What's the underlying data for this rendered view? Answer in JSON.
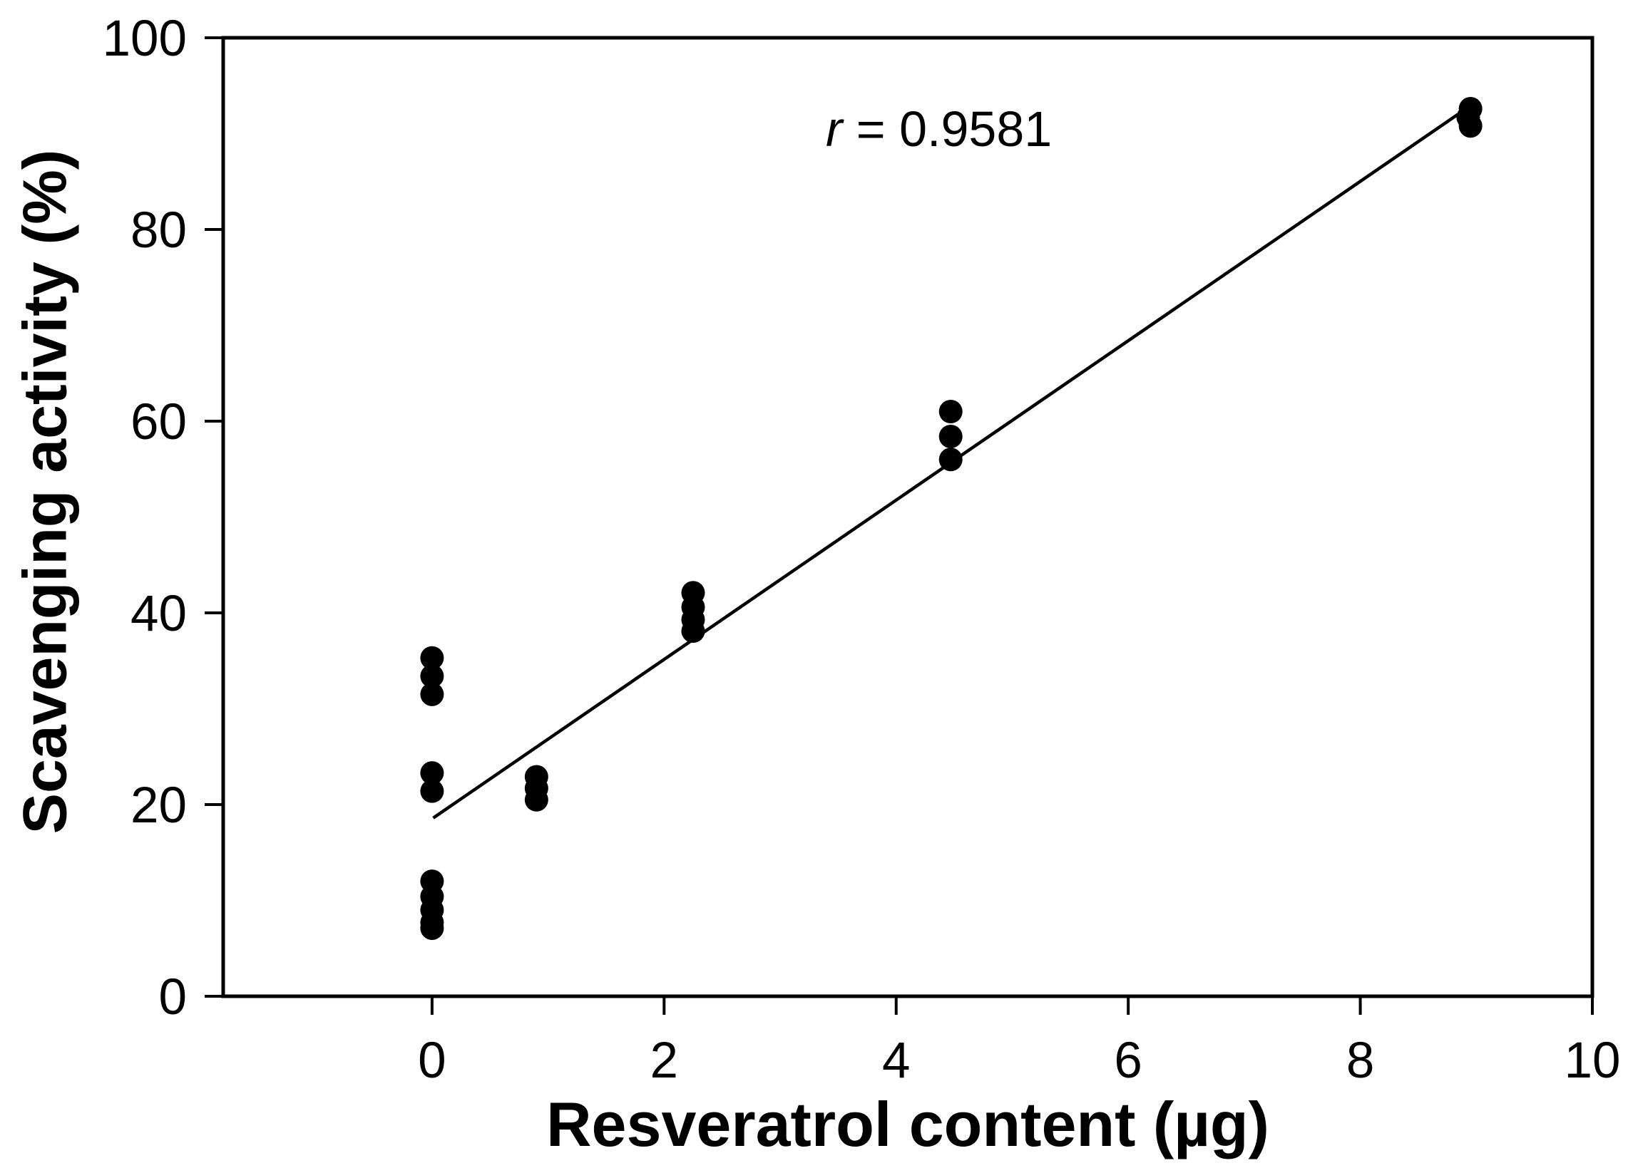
{
  "figure": {
    "background": "#ffffff",
    "foreground": "#000000",
    "annotation": {
      "r_symbol": "r",
      "value": " = 0.9581"
    }
  },
  "chart_data": {
    "type": "scatter",
    "title": "",
    "xlabel": "Resveratrol content (µg)",
    "ylabel": "Scavenging activity (%)",
    "xlim": [
      -1.8,
      10
    ],
    "ylim": [
      0,
      100
    ],
    "x_ticks": [
      0,
      2,
      4,
      6,
      8,
      10
    ],
    "y_ticks": [
      0,
      20,
      40,
      60,
      80,
      100
    ],
    "grid": false,
    "legend": false,
    "marker_color": "#000000",
    "marker_shape": "filled-circle",
    "annotation_text": "r = 0.9581",
    "points": [
      [
        0,
        35.3
      ],
      [
        0,
        33.4
      ],
      [
        0,
        31.5
      ],
      [
        0,
        23.3
      ],
      [
        0,
        21.4
      ],
      [
        0,
        12.0
      ],
      [
        0,
        10.4
      ],
      [
        0,
        9.0
      ],
      [
        0,
        7.7
      ],
      [
        0,
        7.1
      ],
      [
        0.9,
        22.9
      ],
      [
        0.9,
        21.7
      ],
      [
        0.9,
        20.5
      ],
      [
        2.25,
        42.1
      ],
      [
        2.25,
        40.6
      ],
      [
        2.25,
        39.3
      ],
      [
        2.25,
        38.1
      ],
      [
        4.47,
        61.0
      ],
      [
        4.47,
        58.4
      ],
      [
        4.47,
        56.0
      ],
      [
        8.95,
        92.6
      ],
      [
        8.93,
        91.7
      ],
      [
        8.95,
        90.8
      ]
    ],
    "fit_line": {
      "x1": 0.01,
      "y1": 18.6,
      "x2": 8.84,
      "y2": 92.0
    }
  }
}
